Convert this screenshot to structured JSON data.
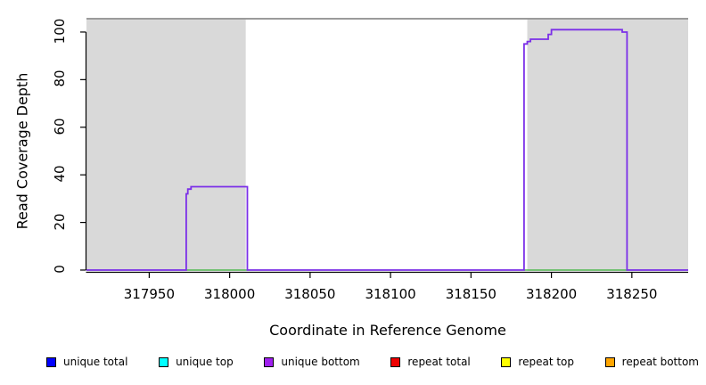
{
  "chart_data": {
    "type": "line",
    "title": "",
    "xlabel": "Coordinate in Reference Genome",
    "ylabel": "Read Coverage Depth",
    "xlim": [
      317911,
      318285
    ],
    "ylim": [
      0,
      105.6
    ],
    "x_ticks": [
      317950,
      318000,
      318050,
      318100,
      318150,
      318200,
      318250
    ],
    "y_ticks": [
      0,
      20,
      40,
      60,
      80,
      100
    ],
    "grid": false,
    "legend_position": "bottom",
    "masked_regions": [
      {
        "start": 317911,
        "end": 318010
      },
      {
        "start": 318185,
        "end": 318285
      }
    ],
    "mask_top_value": 105.6,
    "series": [
      {
        "name": "unique bottom coverage",
        "color": "#7B2FE8",
        "points": [
          [
            317911,
            0
          ],
          [
            317973,
            0
          ],
          [
            317973,
            32
          ],
          [
            317974,
            32
          ],
          [
            317974,
            34
          ],
          [
            317976,
            34
          ],
          [
            317976,
            35
          ],
          [
            318011,
            35
          ],
          [
            318011,
            0
          ],
          [
            318183,
            0
          ],
          [
            318183,
            95
          ],
          [
            318185,
            95
          ],
          [
            318185,
            96
          ],
          [
            318187,
            96
          ],
          [
            318187,
            97
          ],
          [
            318198,
            97
          ],
          [
            318198,
            99
          ],
          [
            318200,
            99
          ],
          [
            318200,
            101
          ],
          [
            318244,
            101
          ],
          [
            318244,
            100
          ],
          [
            318247,
            100
          ],
          [
            318247,
            0
          ],
          [
            318285,
            0
          ]
        ]
      },
      {
        "name": "zero-depth baseline under covered intervals",
        "color": "#55BB55",
        "value": 0,
        "segments": [
          {
            "start": 317973,
            "end": 318011
          },
          {
            "start": 318183,
            "end": 318247
          }
        ]
      }
    ],
    "legend": [
      {
        "label": "unique total",
        "color": "#0000FF"
      },
      {
        "label": "unique top",
        "color": "#00FFFF"
      },
      {
        "label": "unique bottom",
        "color": "#A020F0"
      },
      {
        "label": "repeat total",
        "color": "#EE0000"
      },
      {
        "label": "repeat top",
        "color": "#FFFF00"
      },
      {
        "label": "repeat bottom",
        "color": "#FFA500"
      }
    ],
    "colors": {
      "masked_region_fill": "#D9D9D9",
      "masked_region_top_edge": "#9B9B9B",
      "axis": "#000000"
    }
  }
}
